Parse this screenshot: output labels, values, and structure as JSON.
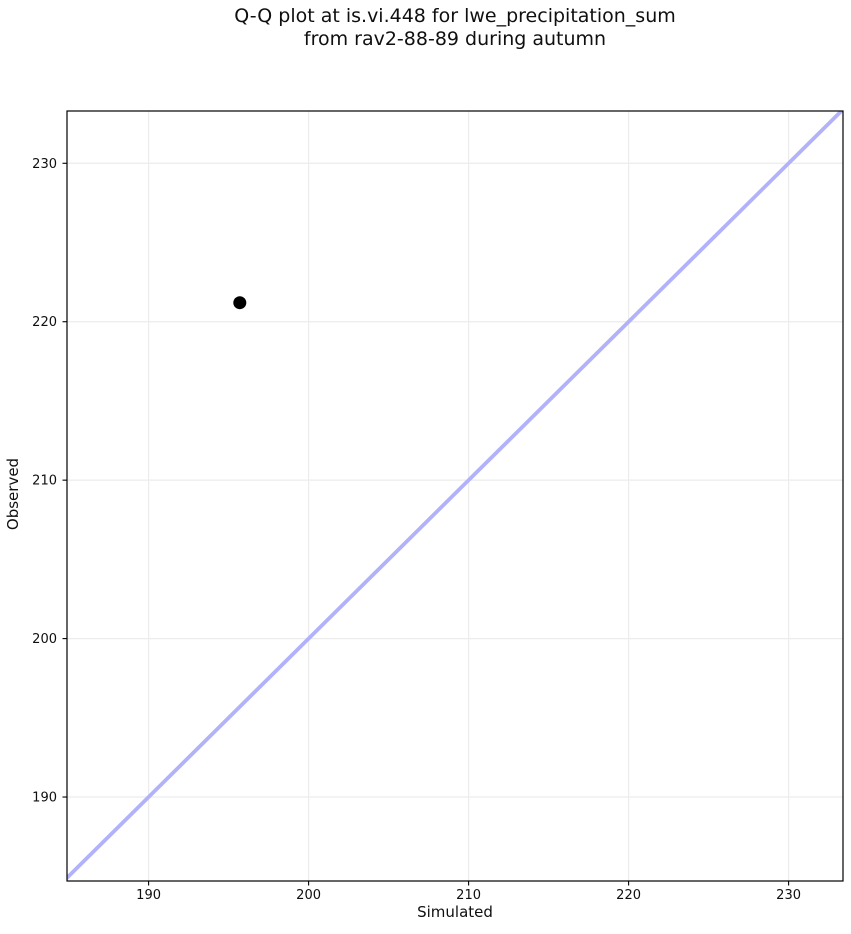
{
  "figure": {
    "title_line1": "Q-Q plot at is.vi.448 for lwe_precipitation_sum",
    "title_line2": "from rav2-88-89 during autumn"
  },
  "chart_data": {
    "type": "scatter",
    "title": "Q-Q plot at is.vi.448 for lwe_precipitation_sum\nfrom rav2-88-89 during autumn",
    "xlabel": "Simulated",
    "ylabel": "Observed",
    "xlim": [
      184.9,
      233.4
    ],
    "ylim": [
      184.7,
      233.3
    ],
    "xticks": [
      190,
      200,
      210,
      220,
      230
    ],
    "yticks": [
      190,
      200,
      210,
      220,
      230
    ],
    "grid": true,
    "legend": false,
    "points": [
      {
        "simulated": 195.7,
        "observed": 221.2
      }
    ],
    "identity_line": {
      "present": true,
      "equation": "y = x"
    },
    "colors": {
      "point": "#000000",
      "identity_line": "#b2b2fb",
      "grid": "#ececec",
      "spine": "#000000",
      "text": "#0f0f0f",
      "background": "#ffffff"
    }
  }
}
